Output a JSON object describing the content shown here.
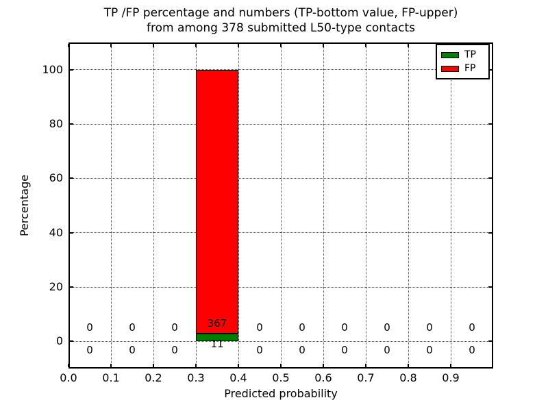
{
  "chart_data": {
    "type": "bar",
    "stacked": true,
    "title_lines": [
      "TP /FP percentage and numbers (TP-bottom value, FP-upper)",
      "from among 378 submitted L50-type contacts"
    ],
    "xlabel": "Predicted probability",
    "ylabel": "Percentage",
    "total_submitted": 378,
    "bin_width": 0.1,
    "bin_starts": [
      0.0,
      0.1,
      0.2,
      0.3,
      0.4,
      0.5,
      0.6,
      0.7,
      0.8,
      0.9
    ],
    "series": [
      {
        "name": "TP",
        "color": "#008000",
        "counts": [
          0,
          0,
          0,
          11,
          0,
          0,
          0,
          0,
          0,
          0
        ]
      },
      {
        "name": "FP",
        "color": "#ff0000",
        "counts": [
          0,
          0,
          0,
          367,
          0,
          0,
          0,
          0,
          0,
          0
        ]
      }
    ],
    "bar_value_labels": {
      "tp_bottom": 11,
      "fp_upper": 367
    },
    "xticks": [
      "0.0",
      "0.1",
      "0.2",
      "0.3",
      "0.4",
      "0.5",
      "0.6",
      "0.7",
      "0.8",
      "0.9"
    ],
    "yticks": [
      0,
      20,
      40,
      60,
      80,
      100
    ],
    "xlim": [
      0.0,
      1.0
    ],
    "ylim": [
      -10,
      110
    ],
    "grid": "dotted",
    "legend": {
      "position": "upper right"
    },
    "colors": {
      "tp": "#008000",
      "fp": "#ff0000",
      "grid": "#444444",
      "text": "#000000",
      "background": "#ffffff"
    }
  }
}
